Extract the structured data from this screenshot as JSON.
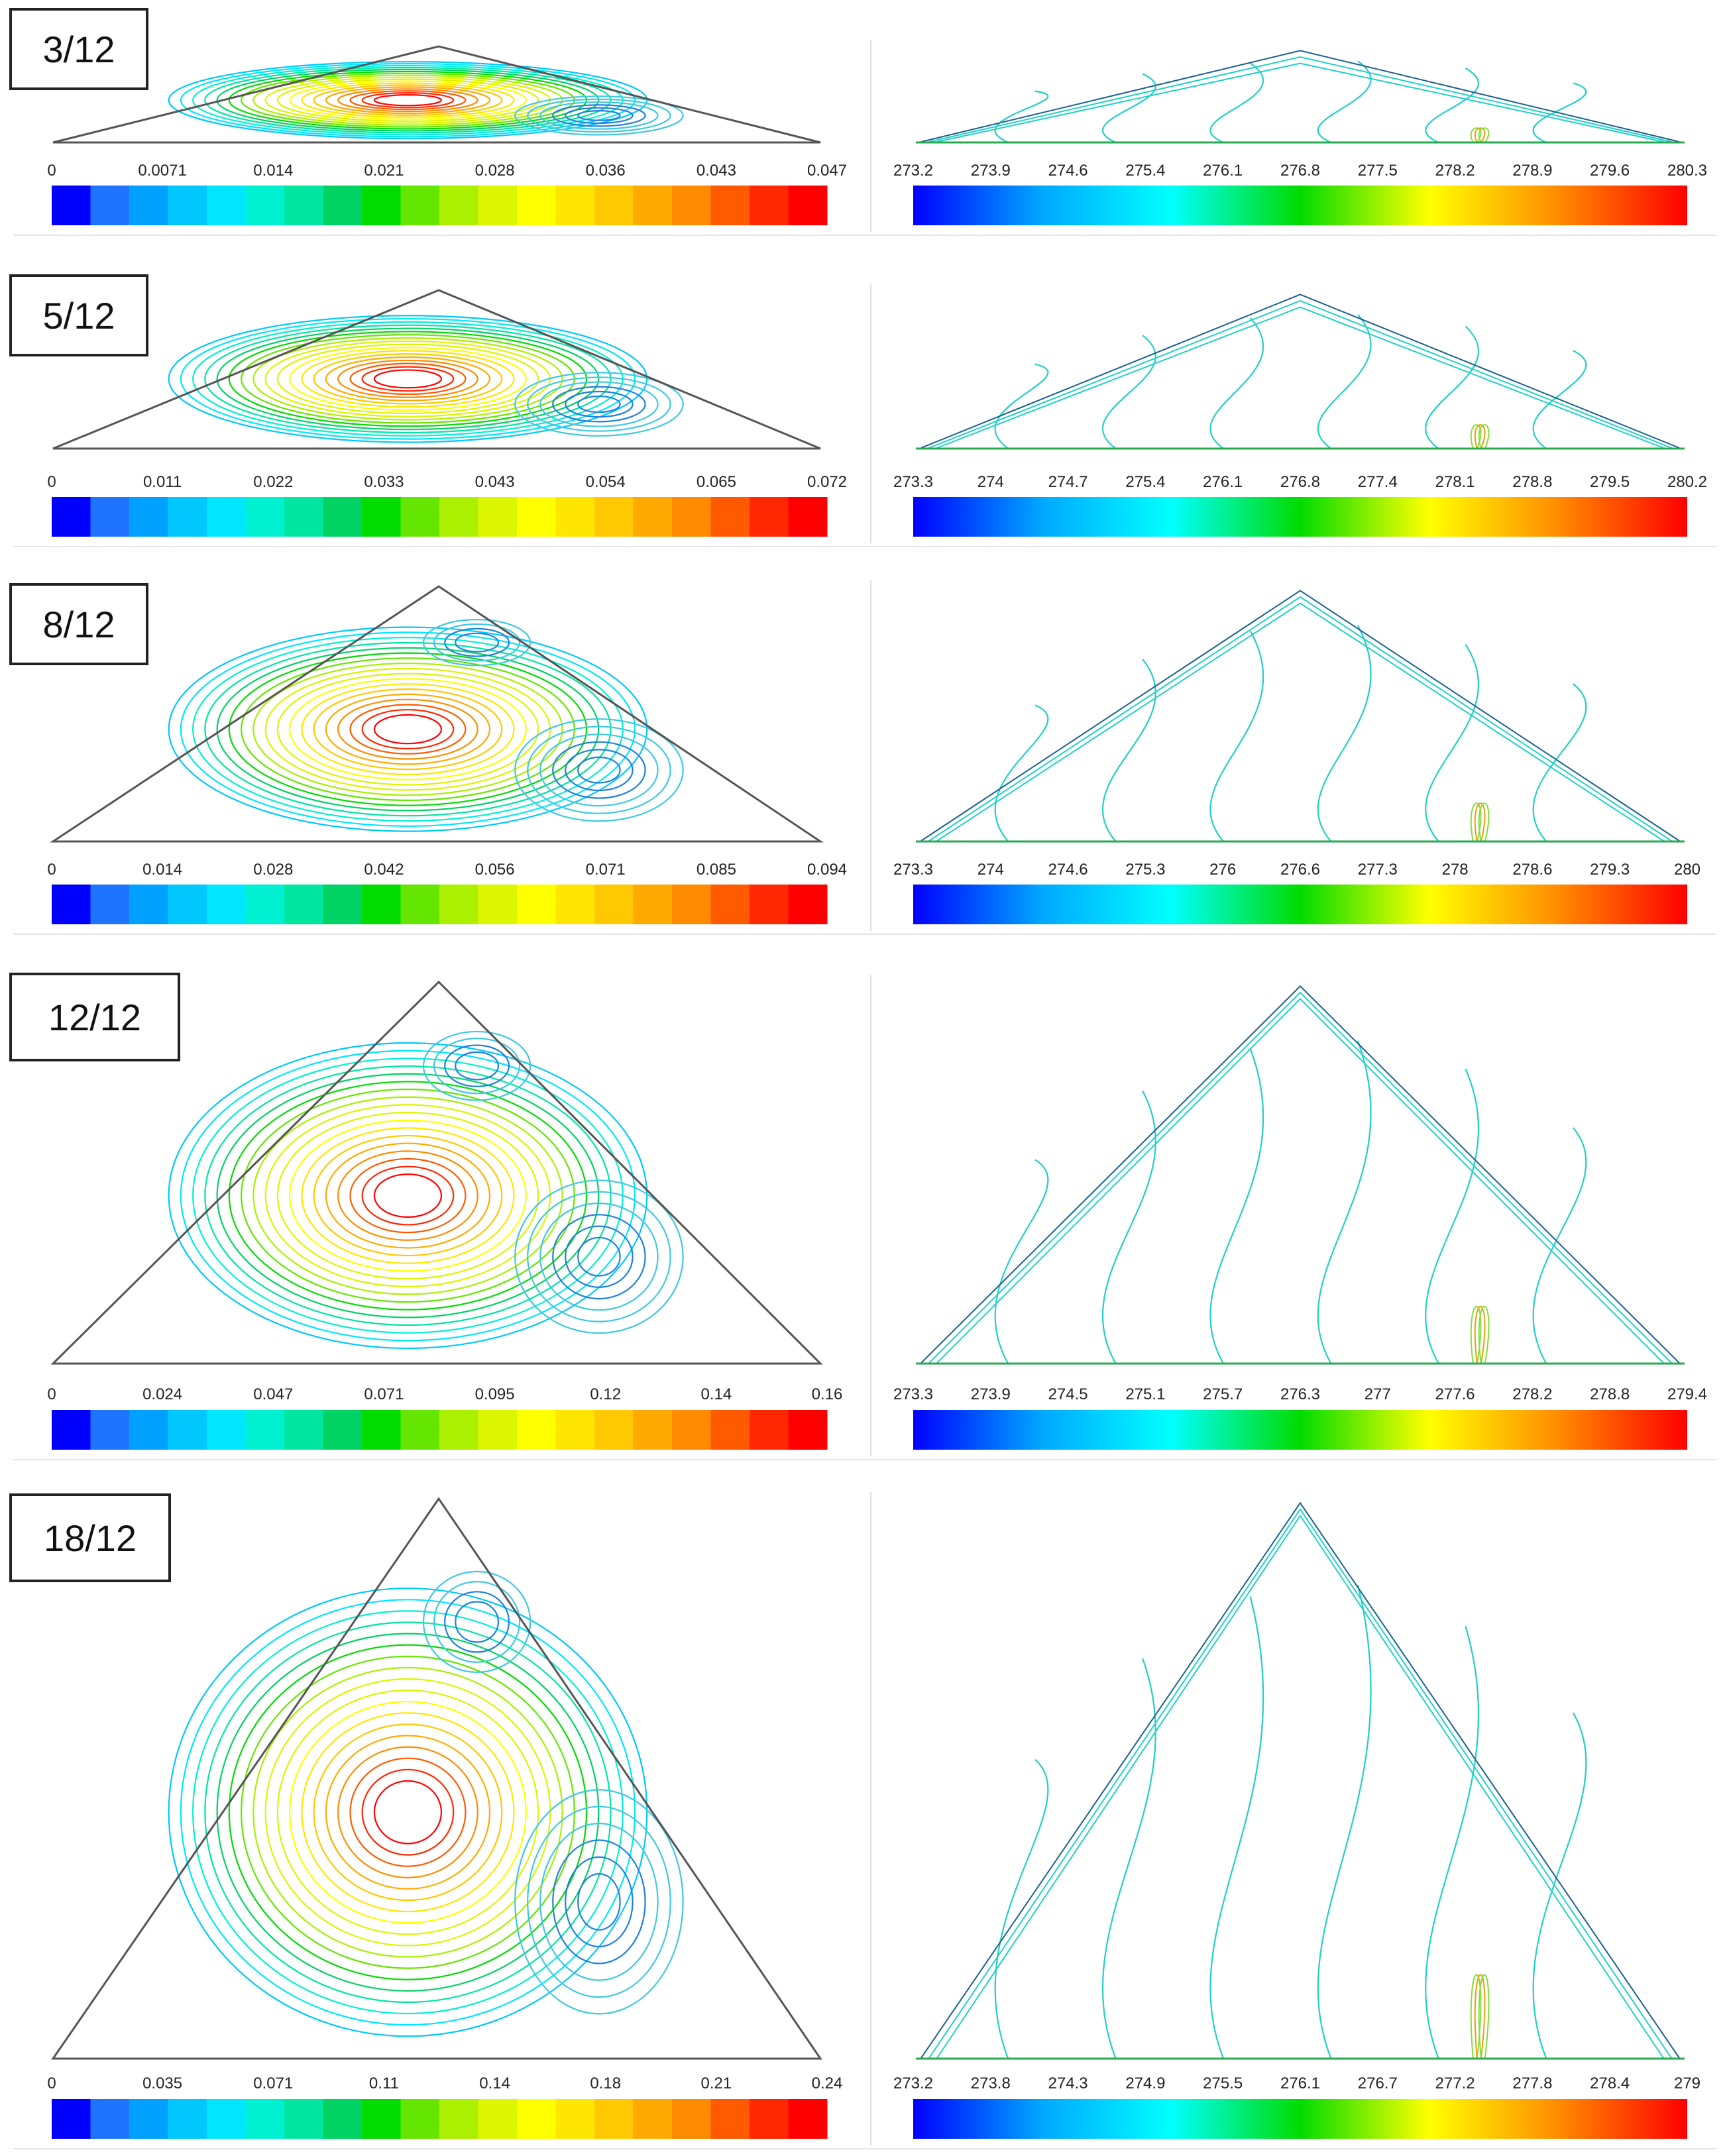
{
  "figure": {
    "rows": [
      {
        "aspect_label": "3/12",
        "streamline_ticks": [
          "0",
          "0.0071",
          "0.014",
          "0.021",
          "0.028",
          "0.036",
          "0.043",
          "0.047"
        ],
        "isotherm_ticks": [
          "273.2",
          "273.9",
          "274.6",
          "275.4",
          "276.1",
          "276.8",
          "277.5",
          "278.2",
          "278.9",
          "279.6",
          "280.3"
        ]
      },
      {
        "aspect_label": "5/12",
        "streamline_ticks": [
          "0",
          "0.011",
          "0.022",
          "0.033",
          "0.043",
          "0.054",
          "0.065",
          "0.072"
        ],
        "isotherm_ticks": [
          "273.3",
          "274",
          "274.7",
          "275.4",
          "276.1",
          "276.8",
          "277.4",
          "278.1",
          "278.8",
          "279.5",
          "280.2"
        ]
      },
      {
        "aspect_label": "8/12",
        "streamline_ticks": [
          "0",
          "0.014",
          "0.028",
          "0.042",
          "0.056",
          "0.071",
          "0.085",
          "0.094"
        ],
        "isotherm_ticks": [
          "273.3",
          "274",
          "274.6",
          "275.3",
          "276",
          "276.6",
          "277.3",
          "278",
          "278.6",
          "279.3",
          "280"
        ]
      },
      {
        "aspect_label": "12/12",
        "streamline_ticks": [
          "0",
          "0.024",
          "0.047",
          "0.071",
          "0.095",
          "0.12",
          "0.14",
          "0.16"
        ],
        "isotherm_ticks": [
          "273.3",
          "273.9",
          "274.5",
          "275.1",
          "275.7",
          "276.3",
          "277",
          "277.6",
          "278.2",
          "278.8",
          "279.4"
        ]
      },
      {
        "aspect_label": "18/12",
        "streamline_ticks": [
          "0",
          "0.035",
          "0.071",
          "0.11",
          "0.14",
          "0.18",
          "0.21",
          "0.24"
        ],
        "isotherm_ticks": [
          "273.2",
          "273.8",
          "274.3",
          "274.9",
          "275.5",
          "276.1",
          "276.7",
          "277.2",
          "277.8",
          "278.4",
          "279"
        ]
      }
    ],
    "colors": {
      "stream_bands": [
        "#0000ff",
        "#1e73ff",
        "#00a0ff",
        "#00c8ff",
        "#00e6ff",
        "#00f0d2",
        "#00e6a0",
        "#00d264",
        "#00dc00",
        "#64e600",
        "#aaf000",
        "#dcf500",
        "#ffff00",
        "#ffe600",
        "#ffc800",
        "#ffaa00",
        "#ff8c00",
        "#ff5a00",
        "#ff2800",
        "#ff0000"
      ],
      "gradient_stops": [
        "#0000ff",
        "#00a8ff",
        "#00ffff",
        "#00dc00",
        "#ffff00",
        "#ff8c00",
        "#ff0000"
      ],
      "streamline_main": "#e03020",
      "streamline_secondary": "#2080e0",
      "isotherm_line": "#20d0c8",
      "wall_line": "#555555"
    }
  }
}
